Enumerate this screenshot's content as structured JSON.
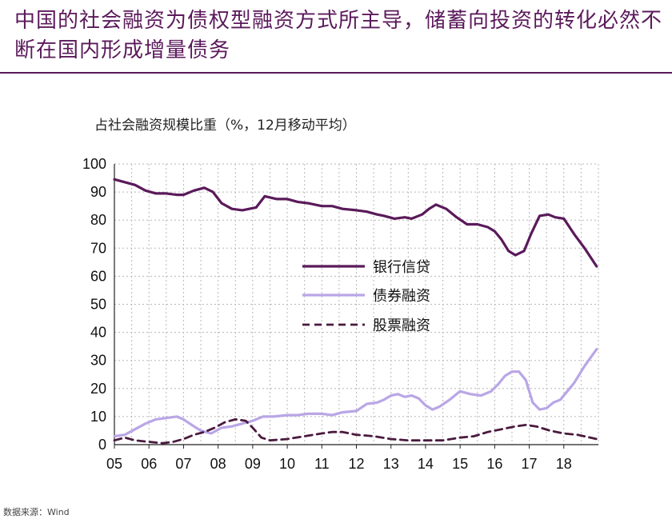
{
  "headline": "中国的社会融资为债权型融资方式所主导，储蓄向投资的转化必然不断在国内形成增量债务",
  "source": "数据来源：Wind",
  "colors": {
    "bank": "#5a1a5a",
    "bond": "#b9a6e6",
    "equity": "#4a1a3e",
    "grid": "#b8b8b8",
    "heading": "#5b1a5b"
  },
  "chart_data": {
    "type": "line",
    "title": "占社会融资规模比重（%，12月移动平均）",
    "x_tick_labels": [
      "05",
      "06",
      "07",
      "08",
      "09",
      "10",
      "11",
      "12",
      "13",
      "14",
      "15",
      "16",
      "17",
      "18"
    ],
    "xlim": [
      2005,
      2019
    ],
    "ylim": [
      0,
      100
    ],
    "y_ticks": [
      0,
      10,
      20,
      30,
      40,
      50,
      60,
      70,
      80,
      90,
      100
    ],
    "grid": true,
    "legend_position": "center",
    "series": [
      {
        "name": "银行信贷",
        "style": "solid-thick",
        "x": [
          2005.0,
          2005.3,
          2005.6,
          2005.9,
          2006.2,
          2006.5,
          2006.8,
          2007.0,
          2007.3,
          2007.6,
          2007.85,
          2008.1,
          2008.4,
          2008.7,
          2008.9,
          2009.1,
          2009.35,
          2009.7,
          2010.0,
          2010.3,
          2010.6,
          2011.0,
          2011.3,
          2011.6,
          2012.0,
          2012.3,
          2012.6,
          2012.8,
          2013.1,
          2013.4,
          2013.6,
          2013.9,
          2014.1,
          2014.3,
          2014.6,
          2014.9,
          2015.2,
          2015.5,
          2015.8,
          2016.0,
          2016.2,
          2016.4,
          2016.6,
          2016.85,
          2017.05,
          2017.3,
          2017.55,
          2017.75,
          2018.0,
          2018.3,
          2018.6,
          2018.95
        ],
        "y": [
          94.5,
          93.5,
          92.5,
          90.5,
          89.5,
          89.5,
          89,
          89,
          90.5,
          91.5,
          90,
          86,
          84,
          83.5,
          84,
          84.5,
          88.5,
          87.5,
          87.5,
          86.5,
          86,
          85,
          85,
          84,
          83.5,
          83,
          82,
          81.5,
          80.5,
          81,
          80.5,
          82,
          84,
          85.5,
          84,
          81,
          78.5,
          78.5,
          77.5,
          76,
          73,
          69,
          67.5,
          69,
          75,
          81.5,
          82,
          81,
          80.5,
          75,
          70,
          63.5
        ]
      },
      {
        "name": "债券融资",
        "style": "solid-light",
        "x": [
          2005.0,
          2005.3,
          2005.6,
          2005.9,
          2006.2,
          2006.5,
          2006.8,
          2007.0,
          2007.3,
          2007.5,
          2007.8,
          2008.1,
          2008.4,
          2008.7,
          2009.0,
          2009.3,
          2009.6,
          2010.0,
          2010.3,
          2010.6,
          2011.0,
          2011.3,
          2011.6,
          2012.0,
          2012.3,
          2012.6,
          2012.8,
          2013.0,
          2013.2,
          2013.4,
          2013.6,
          2013.8,
          2014.0,
          2014.2,
          2014.4,
          2014.7,
          2015.0,
          2015.3,
          2015.6,
          2015.9,
          2016.1,
          2016.3,
          2016.5,
          2016.7,
          2016.9,
          2017.1,
          2017.3,
          2017.5,
          2017.7,
          2017.9,
          2018.1,
          2018.3,
          2018.6,
          2018.95
        ],
        "y": [
          3,
          3.5,
          5.5,
          7.5,
          9,
          9.5,
          10,
          9,
          6.5,
          5,
          4,
          6,
          6.5,
          7.5,
          8.5,
          10,
          10,
          10.5,
          10.5,
          11,
          11,
          10.5,
          11.5,
          12,
          14.5,
          15,
          16,
          17.5,
          18,
          17,
          17.5,
          16.5,
          14,
          12.5,
          13.5,
          16,
          19,
          18,
          17.5,
          19,
          21.5,
          24.5,
          26,
          26,
          23,
          15,
          12.5,
          13,
          15,
          16,
          19,
          22,
          28,
          34
        ]
      },
      {
        "name": "股票融资",
        "style": "dashed",
        "x": [
          2005.0,
          2005.3,
          2005.6,
          2006.0,
          2006.4,
          2006.7,
          2007.0,
          2007.3,
          2007.6,
          2007.9,
          2008.2,
          2008.5,
          2008.8,
          2009.0,
          2009.25,
          2009.5,
          2010.0,
          2010.5,
          2011.0,
          2011.3,
          2011.6,
          2012.0,
          2012.5,
          2013.0,
          2013.5,
          2014.0,
          2014.5,
          2015.0,
          2015.4,
          2015.8,
          2016.2,
          2016.6,
          2016.9,
          2017.2,
          2017.6,
          2018.0,
          2018.4,
          2018.95
        ],
        "y": [
          1.5,
          2.5,
          1.5,
          1,
          0.5,
          1,
          2,
          3.5,
          4.5,
          6,
          8,
          9,
          8.5,
          6,
          2.5,
          1.5,
          2,
          3,
          4,
          4.5,
          4.5,
          3.5,
          3,
          2,
          1.5,
          1.5,
          1.5,
          2.5,
          3,
          4.5,
          5.5,
          6.5,
          7,
          6.5,
          5,
          4,
          3.5,
          2
        ]
      }
    ]
  }
}
